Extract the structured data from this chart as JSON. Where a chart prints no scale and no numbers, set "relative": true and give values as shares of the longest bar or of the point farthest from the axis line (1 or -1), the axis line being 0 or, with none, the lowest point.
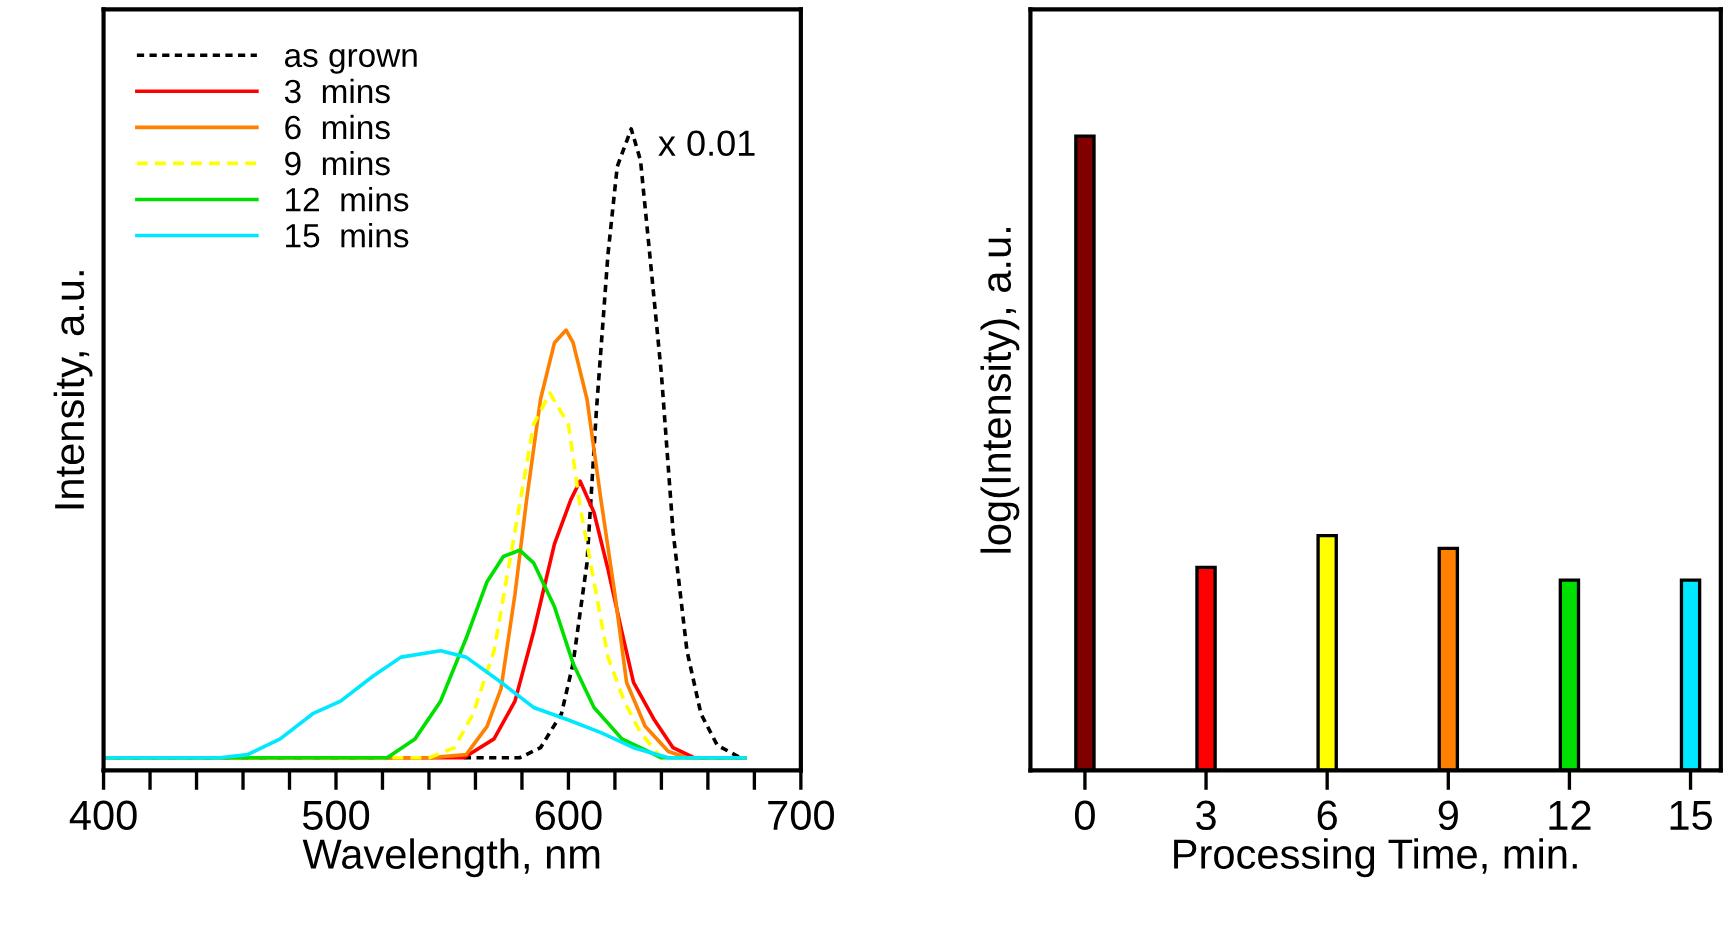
{
  "chart_data": [
    {
      "type": "line",
      "relative": true,
      "xlabel": "Wavelength, nm",
      "ylabel": "Intensity, a.u.",
      "xlim": [
        400,
        700
      ],
      "xticks": [
        400,
        {
          "value": 420,
          "label": null
        },
        {
          "value": 440,
          "label": null
        },
        {
          "value": 460,
          "label": null
        },
        {
          "value": 480,
          "label": null
        },
        500,
        {
          "value": 520,
          "label": null
        },
        {
          "value": 540,
          "label": null
        },
        {
          "value": 560,
          "label": null
        },
        {
          "value": 580,
          "label": null
        },
        600,
        {
          "value": 620,
          "label": null
        },
        {
          "value": 640,
          "label": null
        },
        {
          "value": 660,
          "label": null
        },
        {
          "value": 680,
          "label": null
        },
        700
      ],
      "legend": "top left",
      "grid": false,
      "annotations": [
        "x 0.01"
      ],
      "series": [
        {
          "name": "as grown",
          "color": "#000000",
          "line_style": "dotted",
          "x": [
            555,
            579,
            588,
            597,
            602,
            608,
            612,
            617,
            621,
            627,
            631,
            635,
            640,
            645,
            651,
            657,
            664,
            674
          ],
          "values": [
            0,
            0,
            0.016,
            0.07,
            0.15,
            0.31,
            0.55,
            0.8,
            0.94,
            1,
            0.95,
            0.8,
            0.61,
            0.36,
            0.17,
            0.07,
            0.02,
            0
          ]
        },
        {
          "name": "3  mins",
          "color": "#ff0000",
          "line_style": "solid",
          "x": [
            400,
            555,
            568,
            577,
            585,
            594,
            601,
            605,
            611,
            617,
            623,
            628,
            637,
            645,
            654,
            676
          ],
          "values": [
            0,
            0,
            0.03,
            0.09,
            0.2,
            0.34,
            0.41,
            0.44,
            0.39,
            0.3,
            0.2,
            0.12,
            0.06,
            0.016,
            0,
            0
          ]
        },
        {
          "name": "6  mins",
          "color": "#ff8000",
          "line_style": "solid",
          "x": [
            400,
            540,
            556,
            565,
            571,
            577,
            582,
            588,
            594,
            599,
            602,
            608,
            614,
            620,
            625,
            633,
            643,
            651,
            676
          ],
          "values": [
            0,
            0,
            0.005,
            0.05,
            0.11,
            0.26,
            0.41,
            0.57,
            0.66,
            0.68,
            0.66,
            0.57,
            0.41,
            0.26,
            0.12,
            0.05,
            0.01,
            0,
            0
          ]
        },
        {
          "name": "9  mins",
          "color": "#ffff00",
          "line_style": "dashed",
          "x": [
            400,
            540,
            551,
            559,
            568,
            577,
            585,
            592,
            600,
            605,
            611,
            617,
            624,
            631,
            640,
            676
          ],
          "values": [
            0,
            0,
            0.016,
            0.07,
            0.17,
            0.36,
            0.53,
            0.58,
            0.53,
            0.4,
            0.28,
            0.16,
            0.09,
            0.04,
            0,
            0
          ]
        },
        {
          "name": "12  mins",
          "color": "#00e000",
          "line_style": "solid",
          "x": [
            400,
            522,
            534,
            545,
            556,
            565,
            572,
            579,
            585,
            594,
            602,
            611,
            623,
            640,
            676
          ],
          "values": [
            0,
            0,
            0.03,
            0.09,
            0.19,
            0.28,
            0.32,
            0.33,
            0.31,
            0.24,
            0.15,
            0.08,
            0.03,
            0,
            0
          ]
        },
        {
          "name": "15  mins",
          "color": "#00e8ff",
          "line_style": "solid",
          "x": [
            400,
            450,
            462,
            476,
            490,
            502,
            516,
            528,
            545,
            556,
            571,
            585,
            600,
            614,
            628,
            643,
            676
          ],
          "values": [
            0,
            0,
            0.005,
            0.03,
            0.07,
            0.09,
            0.13,
            0.16,
            0.17,
            0.16,
            0.12,
            0.08,
            0.06,
            0.04,
            0.016,
            0,
            0
          ]
        }
      ]
    },
    {
      "type": "bar",
      "relative": true,
      "xlabel": "Processing Time, min.",
      "ylabel": "log(Intensity), a.u.",
      "categories": [
        "0",
        "3",
        "6",
        "9",
        "12",
        "15"
      ],
      "values": [
        1,
        0.32,
        0.37,
        0.35,
        0.3,
        0.3
      ],
      "colors": [
        "#800000",
        "#ff0000",
        "#ffff00",
        "#ff8000",
        "#00e000",
        "#00e8ff"
      ]
    }
  ]
}
